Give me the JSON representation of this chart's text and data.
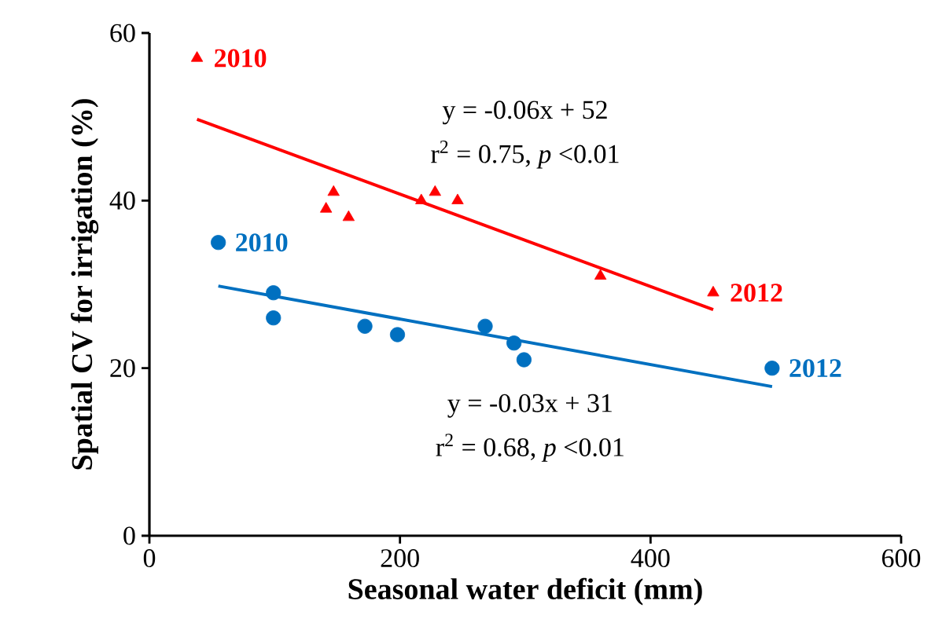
{
  "chart_data": {
    "type": "scatter",
    "xlabel": "Seasonal water deficit (mm)",
    "ylabel": "Spatial CV for irrigation (%)",
    "xlim": [
      0,
      600
    ],
    "xticks": [
      0,
      200,
      400,
      600
    ],
    "ylim": [
      0,
      60
    ],
    "yticks": [
      0,
      20,
      40,
      60
    ],
    "grid": false,
    "series": [
      {
        "marker": "triangle",
        "color": "#ff0000",
        "x": [
          38,
          141,
          147,
          159,
          217,
          228,
          246,
          360,
          450
        ],
        "values": [
          57,
          39,
          41,
          38,
          40,
          41,
          40,
          31,
          29
        ]
      },
      {
        "marker": "circle",
        "color": "#0070c0",
        "x": [
          55,
          99,
          99,
          172,
          198,
          268,
          291,
          299,
          497
        ],
        "values": [
          35,
          29,
          26,
          25,
          24,
          25,
          23,
          21,
          20
        ]
      },
      {
        "type": "line",
        "marker": "none",
        "color": "#ff0000",
        "x": [
          38,
          450
        ],
        "values": [
          49.7,
          27
        ]
      },
      {
        "type": "line",
        "marker": "none",
        "color": "#0070c0",
        "x": [
          55,
          497
        ],
        "values": [
          29.8,
          17.8
        ]
      }
    ],
    "annotations": [
      {
        "text": "2010",
        "x": 38,
        "y": 57
      },
      {
        "text": "2012",
        "x": 450,
        "y": 29
      },
      {
        "text": "2010",
        "x": 55,
        "y": 35
      },
      {
        "text": "2012",
        "x": 497,
        "y": 20
      },
      "y = -0.06x + 52",
      "r$^{2}$ = 0.75, *p* <0.01",
      "y = -0.03x + 31",
      "r$^{2}$ = 0.68, *p* <0.01"
    ]
  }
}
